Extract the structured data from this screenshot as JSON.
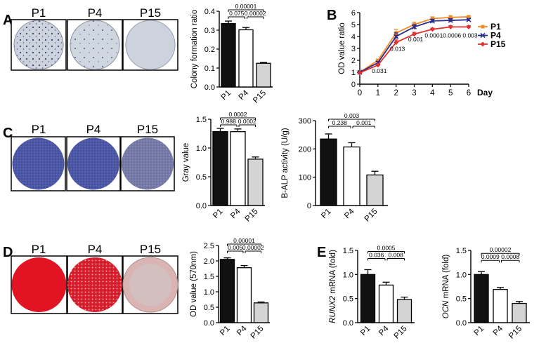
{
  "panel_letters": [
    "A",
    "B",
    "C",
    "D",
    "E"
  ],
  "stain_labels": [
    "P1",
    "P4",
    "P15"
  ],
  "colors": {
    "bar_p1": "#111111",
    "bar_p4": "#ffffff",
    "bar_p15": "#d4d4d4",
    "line_p1": "#f28c28",
    "line_p4": "#2a2a8a",
    "line_p15": "#e03030",
    "crystal_violet_bg": "#c9d0da",
    "alp_blue": "#4a54a0",
    "alizarin_red": "#e01020"
  },
  "chart_data": [
    {
      "panel": "A",
      "type": "bar",
      "categories": [
        "P1",
        "P4",
        "P15"
      ],
      "values": [
        0.335,
        0.302,
        0.125
      ],
      "errors": [
        0.013,
        0.012,
        0.005
      ],
      "ylabel": "Colony formation ratio",
      "ylim": [
        0,
        0.4
      ],
      "yticks": [
        "0.0",
        "0.1",
        "0.2",
        "0.3",
        "0.4"
      ],
      "significance": [
        {
          "from": 0,
          "to": 2,
          "label": "0.00001"
        },
        {
          "from": 0,
          "to": 1,
          "label": "0.075"
        },
        {
          "from": 1,
          "to": 2,
          "label": "0.00002"
        }
      ]
    },
    {
      "panel": "B",
      "type": "line",
      "x": [
        0,
        1,
        2,
        3,
        4,
        5,
        6
      ],
      "xlabel": "Day",
      "ylabel": "OD value ratio",
      "xlim": [
        0,
        6
      ],
      "ylim": [
        0,
        6
      ],
      "xticks": [
        "0",
        "1",
        "2",
        "3",
        "4",
        "5",
        "6"
      ],
      "yticks": [
        "0",
        "1",
        "2",
        "3",
        "4",
        "5",
        "6"
      ],
      "legend": "top-right",
      "series": [
        {
          "name": "P1",
          "values": [
            1.0,
            2.0,
            4.3,
            5.0,
            5.5,
            5.6,
            5.65
          ],
          "errors": [
            0.05,
            0.1,
            0.3,
            0.2,
            0.15,
            0.15,
            0.1
          ]
        },
        {
          "name": "P4",
          "values": [
            1.0,
            1.8,
            4.0,
            4.8,
            5.3,
            5.35,
            5.4
          ],
          "errors": [
            0.05,
            0.1,
            0.3,
            0.2,
            0.15,
            0.15,
            0.1
          ]
        },
        {
          "name": "P15",
          "values": [
            0.95,
            1.6,
            3.5,
            4.2,
            4.6,
            4.8,
            4.8
          ],
          "errors": [
            0.05,
            0.1,
            0.2,
            0.15,
            0.1,
            0.1,
            0.1
          ]
        }
      ],
      "annotations": [
        {
          "x": 1,
          "y": 0.95,
          "label": "0.031"
        },
        {
          "x": 2,
          "y": 2.8,
          "label": "0.013"
        },
        {
          "x": 3,
          "y": 3.6,
          "label": "0.001"
        },
        {
          "x": 4,
          "y": 3.9,
          "label": "0.0001"
        },
        {
          "x": 5,
          "y": 3.9,
          "label": "0.0006"
        },
        {
          "x": 6,
          "y": 3.9,
          "label": "0.003"
        }
      ]
    },
    {
      "panel": "C1",
      "type": "bar",
      "categories": [
        "P1",
        "P4",
        "P15"
      ],
      "values": [
        1.37,
        1.37,
        0.86
      ],
      "errors": [
        0.06,
        0.05,
        0.04
      ],
      "ylabel": "Gray value",
      "ylim": [
        0,
        1.6
      ],
      "yticks": [
        "0.0",
        "0.5",
        "1.0",
        "1.5"
      ],
      "significance": [
        {
          "from": 0,
          "to": 2,
          "label": "0.0002"
        },
        {
          "from": 0,
          "to": 1,
          "label": "0.988"
        },
        {
          "from": 1,
          "to": 2,
          "label": "0.0002"
        }
      ]
    },
    {
      "panel": "C2",
      "type": "bar",
      "categories": [
        "P1",
        "P4",
        "P15"
      ],
      "values": [
        235,
        207,
        108
      ],
      "errors": [
        18,
        15,
        13
      ],
      "ylabel": "B-ALP activity (U/g)",
      "ylim": [
        0,
        300
      ],
      "yticks": [
        "0",
        "100",
        "200",
        "300"
      ],
      "significance": [
        {
          "from": 0,
          "to": 2,
          "label": "0.003"
        },
        {
          "from": 0,
          "to": 1,
          "label": "0.238"
        },
        {
          "from": 1,
          "to": 2,
          "label": "0.001"
        }
      ]
    },
    {
      "panel": "D",
      "type": "bar",
      "categories": [
        "P1",
        "P4",
        "P15"
      ],
      "values": [
        2.05,
        1.78,
        0.64
      ],
      "errors": [
        0.05,
        0.07,
        0.03
      ],
      "ylabel": "OD value (570nm)",
      "ylim": [
        0,
        2.5
      ],
      "yticks": [
        "0.0",
        "0.5",
        "1.0",
        "1.5",
        "2.0",
        "2.5"
      ],
      "significance": [
        {
          "from": 0,
          "to": 2,
          "label": "0.00001"
        },
        {
          "from": 0,
          "to": 1,
          "label": "0.005"
        },
        {
          "from": 1,
          "to": 2,
          "label": "0.00002"
        }
      ]
    },
    {
      "panel": "E1",
      "type": "bar",
      "categories": [
        "P1",
        "P4",
        "P15"
      ],
      "values": [
        1.0,
        0.78,
        0.48
      ],
      "errors": [
        0.1,
        0.06,
        0.05
      ],
      "ylabel": "RUNX2 mRNA (fold)",
      "ylim": [
        0,
        1.5
      ],
      "yticks": [
        "0.0",
        "0.5",
        "1.0",
        "1.5"
      ],
      "significance": [
        {
          "from": 0,
          "to": 2,
          "label": "0.0005"
        },
        {
          "from": 0,
          "to": 1,
          "label": "0.036"
        },
        {
          "from": 1,
          "to": 2,
          "label": "0.008"
        }
      ]
    },
    {
      "panel": "E2",
      "type": "bar",
      "categories": [
        "P1",
        "P4",
        "P15"
      ],
      "values": [
        1.0,
        0.69,
        0.4
      ],
      "errors": [
        0.06,
        0.04,
        0.04
      ],
      "ylabel": "OCN mRNA (fold)",
      "ylim": [
        0,
        1.5
      ],
      "yticks": [
        "0.0",
        "0.5",
        "1.0",
        "1.5"
      ],
      "significance": [
        {
          "from": 0,
          "to": 2,
          "label": "0.00002"
        },
        {
          "from": 0,
          "to": 1,
          "label": "0.0009"
        },
        {
          "from": 1,
          "to": 2,
          "label": "0.0008"
        }
      ]
    }
  ]
}
